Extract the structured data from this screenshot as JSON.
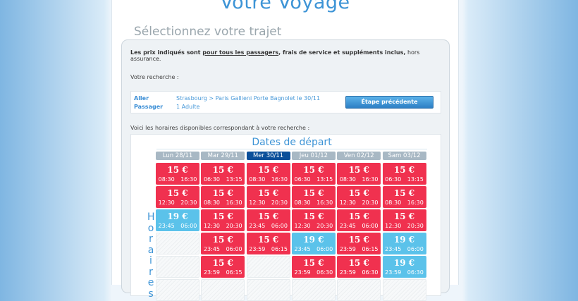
{
  "header": {
    "title": "Votre Voyage",
    "subtitle": "Sélectionnez votre trajet"
  },
  "notice": {
    "prefix": "Les prix indiqués sont ",
    "underlined": "pour tous les passagers",
    "middle": ", frais de service et suppléments inclus,",
    "suffix": " hors assurance."
  },
  "search": {
    "label": "Votre recherche :",
    "aller_label": "Aller",
    "aller_value": "Strasbourg > Paris Gallieni Porte Bagnolet le 30/11",
    "passager_label": "Passager",
    "passager_value": "1 Adulte",
    "prev_button": "Étape précédente"
  },
  "results_label": "Voici les horaires disponibles correspondant à votre recherche :",
  "calendar": {
    "title": "Dates de départ",
    "row_label": "Horaires",
    "colors": {
      "standard": "#f0314f",
      "alt": "#5bc2ea",
      "selected_day": "#0b4f9a"
    },
    "days": [
      {
        "label": "Lun 28/11",
        "selected": false,
        "trips": [
          {
            "price": "15 €",
            "dep": "08:30",
            "arr": "16:30",
            "color": "red"
          },
          {
            "price": "15 €",
            "dep": "12:30",
            "arr": "20:30",
            "color": "red"
          },
          {
            "price": "19 €",
            "dep": "23:45",
            "arr": "06:00",
            "color": "blue"
          },
          null,
          null,
          null
        ]
      },
      {
        "label": "Mar 29/11",
        "selected": false,
        "trips": [
          {
            "price": "15 €",
            "dep": "06:30",
            "arr": "13:15",
            "color": "red"
          },
          {
            "price": "15 €",
            "dep": "08:30",
            "arr": "16:30",
            "color": "red"
          },
          {
            "price": "15 €",
            "dep": "12:30",
            "arr": "20:30",
            "color": "red"
          },
          {
            "price": "15 €",
            "dep": "23:45",
            "arr": "06:00",
            "color": "red"
          },
          {
            "price": "15 €",
            "dep": "23:59",
            "arr": "06:15",
            "color": "red"
          },
          null
        ]
      },
      {
        "label": "Mer 30/11",
        "selected": true,
        "trips": [
          {
            "price": "15 €",
            "dep": "08:30",
            "arr": "16:30",
            "color": "red"
          },
          {
            "price": "15 €",
            "dep": "12:30",
            "arr": "20:30",
            "color": "red"
          },
          {
            "price": "15 €",
            "dep": "23:45",
            "arr": "06:00",
            "color": "red"
          },
          {
            "price": "15 €",
            "dep": "23:59",
            "arr": "06:15",
            "color": "red"
          },
          null,
          null
        ]
      },
      {
        "label": "Jeu 01/12",
        "selected": false,
        "trips": [
          {
            "price": "15 €",
            "dep": "06:30",
            "arr": "13:15",
            "color": "red"
          },
          {
            "price": "15 €",
            "dep": "08:30",
            "arr": "16:30",
            "color": "red"
          },
          {
            "price": "15 €",
            "dep": "12:30",
            "arr": "20:30",
            "color": "red"
          },
          {
            "price": "19 €",
            "dep": "23:45",
            "arr": "06:00",
            "color": "blue"
          },
          {
            "price": "15 €",
            "dep": "23:59",
            "arr": "06:30",
            "color": "red"
          },
          null
        ]
      },
      {
        "label": "Ven 02/12",
        "selected": false,
        "trips": [
          {
            "price": "15 €",
            "dep": "08:30",
            "arr": "16:30",
            "color": "red"
          },
          {
            "price": "15 €",
            "dep": "12:30",
            "arr": "20:30",
            "color": "red"
          },
          {
            "price": "15 €",
            "dep": "23:45",
            "arr": "06:00",
            "color": "red"
          },
          {
            "price": "15 €",
            "dep": "23:59",
            "arr": "06:15",
            "color": "red"
          },
          {
            "price": "15 €",
            "dep": "23:59",
            "arr": "06:30",
            "color": "red"
          },
          null
        ]
      },
      {
        "label": "Sam 03/12",
        "selected": false,
        "trips": [
          {
            "price": "15 €",
            "dep": "06:30",
            "arr": "13:15",
            "color": "red"
          },
          {
            "price": "15 €",
            "dep": "08:30",
            "arr": "16:30",
            "color": "red"
          },
          {
            "price": "15 €",
            "dep": "12:30",
            "arr": "20:30",
            "color": "red"
          },
          {
            "price": "19 €",
            "dep": "23:45",
            "arr": "06:00",
            "color": "blue"
          },
          {
            "price": "19 €",
            "dep": "23:59",
            "arr": "06:30",
            "color": "blue"
          },
          null
        ]
      }
    ]
  }
}
